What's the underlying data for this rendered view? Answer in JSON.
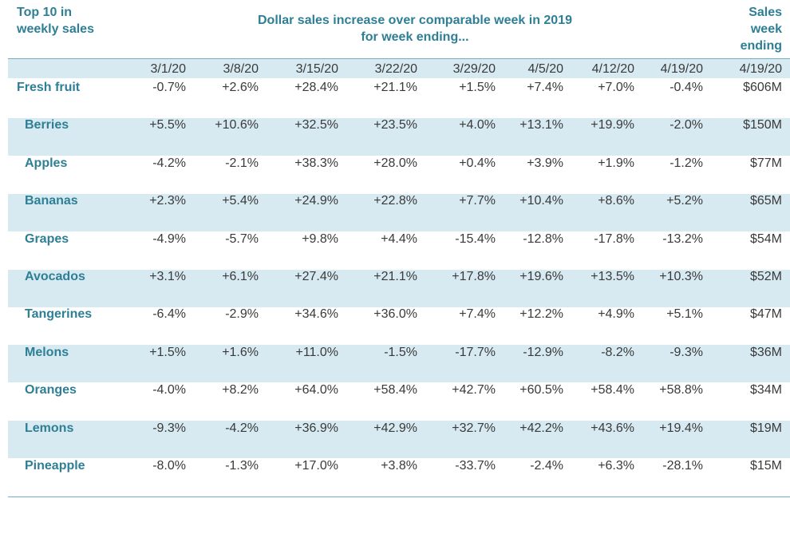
{
  "chart_data": {
    "type": "table",
    "header": {
      "left_line1": "Top 10 in",
      "left_line2": "weekly sales",
      "title_line1": "Dollar sales increase over comparable week in 2019",
      "title_line2": "for week ending...",
      "right_line1": "Sales",
      "right_line2": "week",
      "right_line3": "ending"
    },
    "columns": [
      "3/1/20",
      "3/8/20",
      "3/15/20",
      "3/22/20",
      "3/29/20",
      "4/5/20",
      "4/12/20",
      "4/19/20",
      "4/19/20"
    ],
    "rows": [
      {
        "name": "Fresh fruit",
        "values": [
          "-0.7%",
          "+2.6%",
          "+28.4%",
          "+21.1%",
          "+1.5%",
          "+7.4%",
          "+7.0%",
          "-0.4%",
          "$606M"
        ]
      },
      {
        "name": "Berries",
        "values": [
          "+5.5%",
          "+10.6%",
          "+32.5%",
          "+23.5%",
          "+4.0%",
          "+13.1%",
          "+19.9%",
          "-2.0%",
          "$150M"
        ]
      },
      {
        "name": "Apples",
        "values": [
          "-4.2%",
          "-2.1%",
          "+38.3%",
          "+28.0%",
          "+0.4%",
          "+3.9%",
          "+1.9%",
          "-1.2%",
          "$77M"
        ]
      },
      {
        "name": "Bananas",
        "values": [
          "+2.3%",
          "+5.4%",
          "+24.9%",
          "+22.8%",
          "+7.7%",
          "+10.4%",
          "+8.6%",
          "+5.2%",
          "$65M"
        ]
      },
      {
        "name": "Grapes",
        "values": [
          "-4.9%",
          "-5.7%",
          "+9.8%",
          "+4.4%",
          "-15.4%",
          "-12.8%",
          "-17.8%",
          "-13.2%",
          "$54M"
        ]
      },
      {
        "name": "Avocados",
        "values": [
          "+3.1%",
          "+6.1%",
          "+27.4%",
          "+21.1%",
          "+17.8%",
          "+19.6%",
          "+13.5%",
          "+10.3%",
          "$52M"
        ]
      },
      {
        "name": "Tangerines",
        "values": [
          "-6.4%",
          "-2.9%",
          "+34.6%",
          "+36.0%",
          "+7.4%",
          "+12.2%",
          "+4.9%",
          "+5.1%",
          "$47M"
        ]
      },
      {
        "name": "Melons",
        "values": [
          "+1.5%",
          "+1.6%",
          "+11.0%",
          "-1.5%",
          "-17.7%",
          "-12.9%",
          "-8.2%",
          "-9.3%",
          "$36M"
        ]
      },
      {
        "name": "Oranges",
        "values": [
          "-4.0%",
          "+8.2%",
          "+64.0%",
          "+58.4%",
          "+42.7%",
          "+60.5%",
          "+58.4%",
          "+58.8%",
          "$34M"
        ]
      },
      {
        "name": "Lemons",
        "values": [
          "-9.3%",
          "-4.2%",
          "+36.9%",
          "+42.9%",
          "+32.7%",
          "+42.2%",
          "+43.6%",
          "+19.4%",
          "$19M"
        ]
      },
      {
        "name": "Pineapple",
        "values": [
          "-8.0%",
          "-1.3%",
          "+17.0%",
          "+3.8%",
          "-33.7%",
          "-2.4%",
          "+6.3%",
          "-28.1%",
          "$15M"
        ]
      }
    ],
    "colors": {
      "accent": "#2e7f96",
      "band": "#d7eaf1",
      "rule": "#6fb2c4",
      "text": "#3a3a3a"
    }
  }
}
